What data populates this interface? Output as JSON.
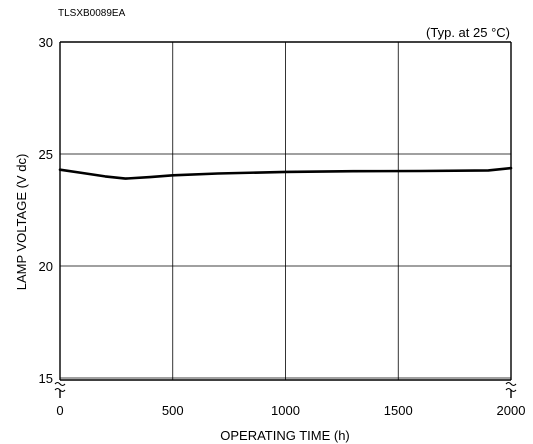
{
  "figure_code": "TLSXB0089EA",
  "chart_data": {
    "type": "line",
    "title": "",
    "annotation": "(Typ. at 25 °C)",
    "xlabel": "OPERATING TIME (h)",
    "ylabel": "LAMP VOLTAGE (V dc)",
    "xlim": [
      0,
      2000
    ],
    "ylim": [
      15,
      30
    ],
    "x_ticks": [
      0,
      500,
      1000,
      1500,
      2000
    ],
    "y_ticks": [
      15,
      20,
      25,
      30
    ],
    "grid": true,
    "axis_break": "y-axis broken between 0 and 15",
    "series": [
      {
        "x": [
          0,
          100,
          200,
          290,
          400,
          500,
          700,
          1000,
          1300,
          1600,
          1900,
          2000
        ],
        "y": [
          24.3,
          24.15,
          24.0,
          23.9,
          23.97,
          24.05,
          24.13,
          24.2,
          24.23,
          24.24,
          24.27,
          24.37
        ]
      }
    ]
  }
}
